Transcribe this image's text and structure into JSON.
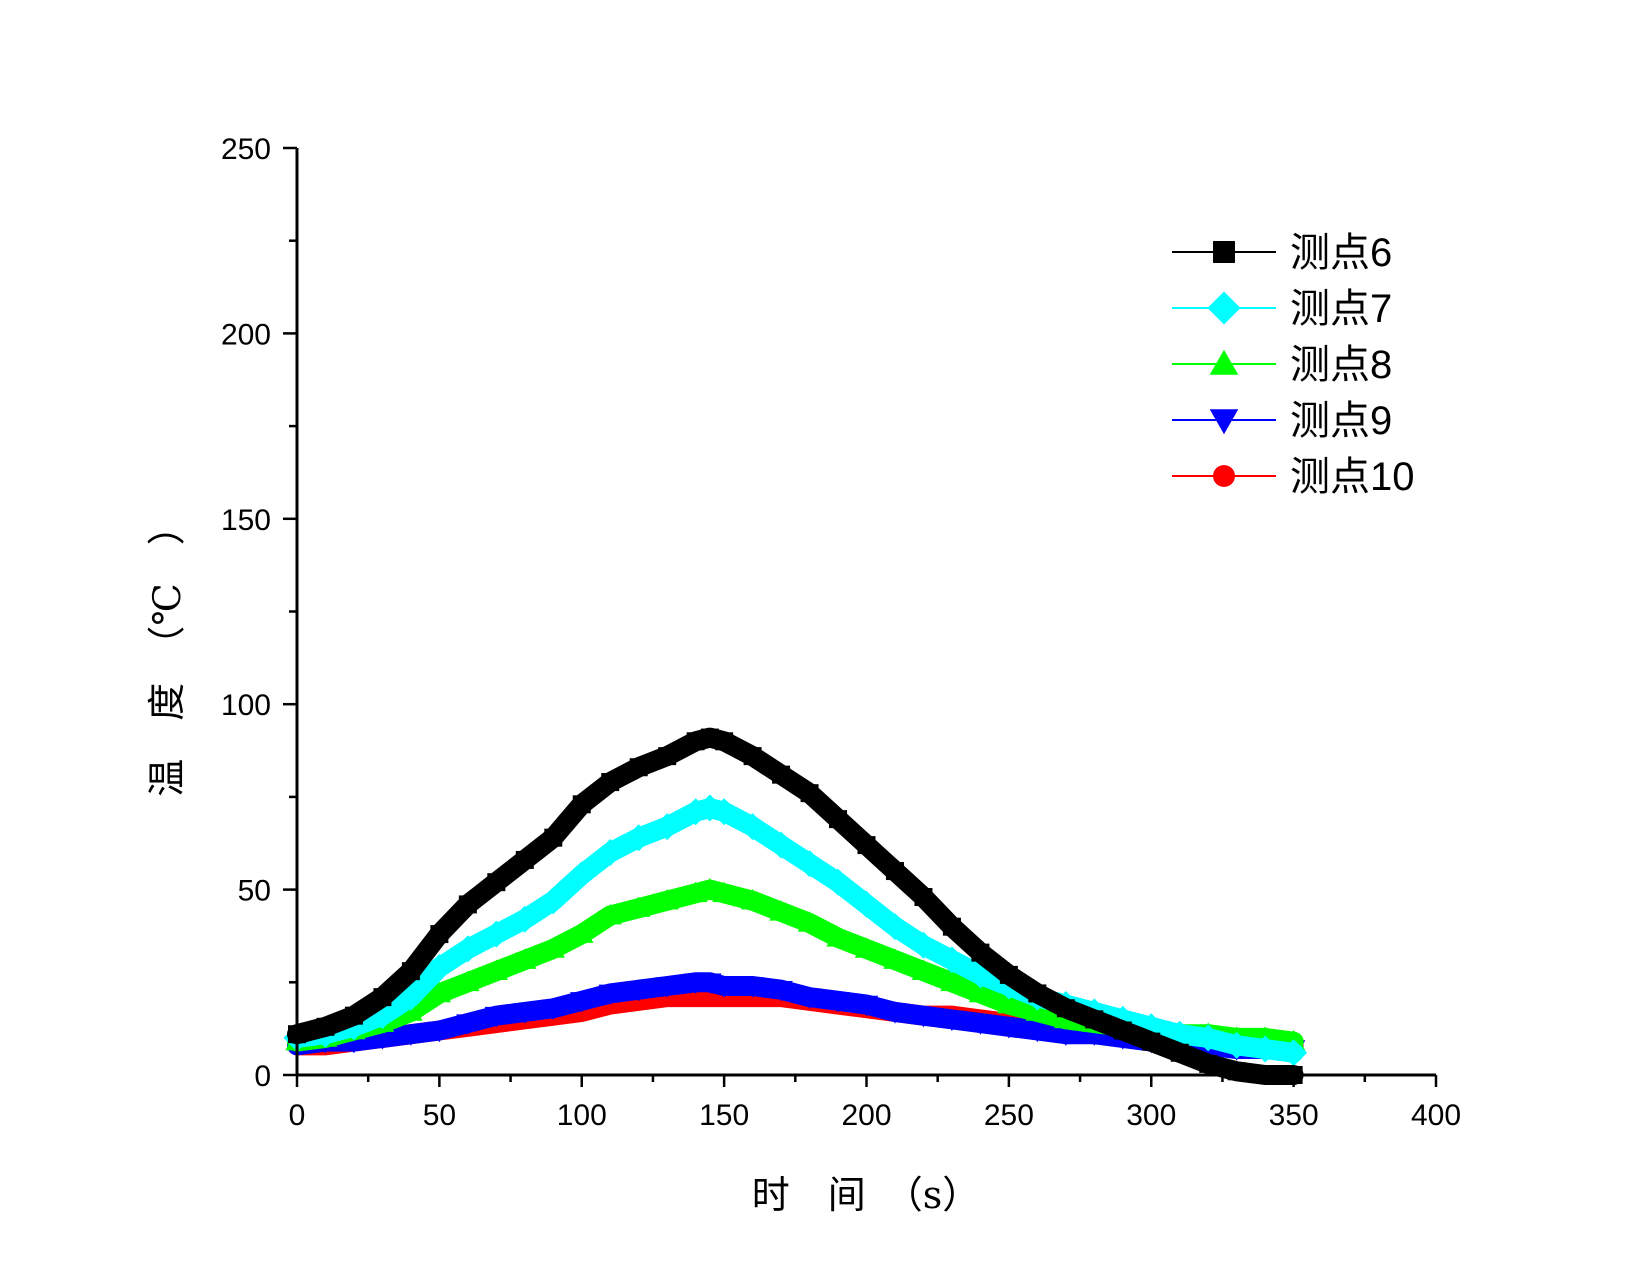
{
  "chart_data": {
    "type": "line",
    "title": "",
    "xlabel": "时　间　（s）",
    "ylabel": "温　度　（℃　）",
    "xlim": [
      0,
      400
    ],
    "ylim": [
      0,
      250
    ],
    "xticks": [
      "0",
      "50",
      "100",
      "150",
      "200",
      "250",
      "300",
      "350",
      "400"
    ],
    "yticks": [
      "0",
      "50",
      "100",
      "150",
      "200",
      "250"
    ],
    "grid": false,
    "legend_position": "top-right",
    "series": [
      {
        "name": "测点6",
        "color": "#000000",
        "marker": "square",
        "x": [
          0,
          10,
          20,
          30,
          40,
          50,
          60,
          70,
          80,
          90,
          100,
          110,
          120,
          130,
          140,
          145,
          150,
          160,
          170,
          180,
          190,
          200,
          210,
          220,
          230,
          240,
          250,
          260,
          270,
          280,
          290,
          300,
          310,
          320,
          330,
          340,
          350
        ],
        "y": [
          11,
          13,
          16,
          21,
          28,
          38,
          46,
          52,
          58,
          64,
          73,
          79,
          83,
          86,
          90,
          91,
          90,
          86,
          81,
          76,
          69,
          62,
          55,
          48,
          40,
          33,
          27,
          22,
          18,
          15,
          12,
          9,
          6,
          3,
          1,
          0,
          0
        ]
      },
      {
        "name": "测点7",
        "color": "#00FFFF",
        "marker": "diamond",
        "x": [
          0,
          10,
          20,
          30,
          40,
          50,
          60,
          70,
          80,
          90,
          100,
          110,
          120,
          130,
          140,
          145,
          150,
          160,
          170,
          180,
          190,
          200,
          210,
          220,
          230,
          240,
          250,
          260,
          270,
          280,
          290,
          300,
          310,
          320,
          330,
          340,
          350
        ],
        "y": [
          10,
          11,
          13,
          16,
          21,
          29,
          34,
          38,
          42,
          47,
          54,
          60,
          64,
          67,
          71,
          72,
          71,
          67,
          62,
          57,
          52,
          46,
          40,
          35,
          31,
          27,
          24,
          21,
          19,
          17,
          15,
          13,
          11,
          10,
          8,
          7,
          6
        ]
      },
      {
        "name": "测点8",
        "color": "#00FF00",
        "marker": "triangle-up",
        "x": [
          0,
          10,
          20,
          30,
          40,
          50,
          60,
          70,
          80,
          90,
          100,
          110,
          120,
          130,
          140,
          145,
          150,
          160,
          170,
          180,
          190,
          200,
          210,
          220,
          230,
          240,
          250,
          260,
          270,
          280,
          290,
          300,
          310,
          320,
          330,
          340,
          350
        ],
        "y": [
          9,
          10,
          12,
          14,
          17,
          22,
          25,
          28,
          31,
          34,
          38,
          43,
          45,
          47,
          49,
          50,
          49,
          47,
          44,
          41,
          37,
          34,
          31,
          28,
          25,
          22,
          19,
          17,
          15,
          14,
          13,
          12,
          11,
          11,
          10,
          10,
          9
        ]
      },
      {
        "name": "测点9",
        "color": "#0000FF",
        "marker": "triangle-down",
        "x": [
          0,
          10,
          20,
          30,
          40,
          50,
          60,
          70,
          80,
          90,
          100,
          110,
          120,
          130,
          140,
          145,
          150,
          160,
          170,
          180,
          190,
          200,
          210,
          220,
          230,
          240,
          250,
          260,
          270,
          280,
          290,
          300,
          310,
          320,
          330,
          340,
          350
        ],
        "y": [
          8,
          9,
          9,
          10,
          11,
          12,
          14,
          16,
          17,
          18,
          20,
          22,
          23,
          24,
          25,
          25,
          24,
          24,
          23,
          21,
          20,
          19,
          17,
          16,
          15,
          14,
          13,
          12,
          11,
          11,
          10,
          9,
          8,
          8,
          7,
          7,
          7
        ]
      },
      {
        "name": "测点10",
        "color": "#FF0000",
        "marker": "circle",
        "x": [
          0,
          10,
          20,
          30,
          40,
          50,
          60,
          70,
          80,
          90,
          100,
          110,
          120,
          130,
          140,
          145,
          150,
          160,
          170,
          180,
          190,
          200,
          210,
          220,
          230,
          240,
          250,
          260,
          270,
          280,
          290,
          300,
          310,
          320,
          330,
          340,
          350
        ],
        "y": [
          8,
          8,
          9,
          10,
          11,
          12,
          13,
          14,
          15,
          16,
          17,
          19,
          20,
          21,
          21,
          21,
          21,
          21,
          21,
          20,
          19,
          18,
          17,
          16,
          16,
          15,
          14,
          13,
          12,
          12,
          11,
          10,
          10,
          9,
          9,
          8,
          8
        ]
      }
    ]
  }
}
